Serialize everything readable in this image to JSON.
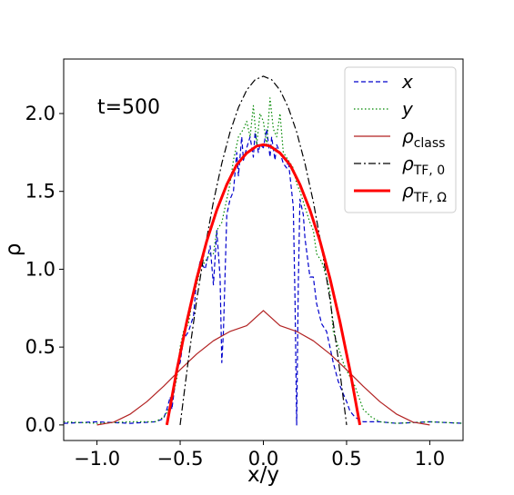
{
  "chart_data": {
    "type": "line",
    "xlabel": "x/y",
    "ylabel": "ρ",
    "xlim": [
      -1.2,
      1.2
    ],
    "ylim": [
      -0.1,
      2.35
    ],
    "xticks": [
      -1.0,
      -0.5,
      0.0,
      0.5,
      1.0
    ],
    "xtick_labels": [
      "−1.0",
      "−0.5",
      "0.0",
      "0.5",
      "1.0"
    ],
    "yticks": [
      0.0,
      0.5,
      1.0,
      1.5,
      2.0
    ],
    "ytick_labels": [
      "0.0",
      "0.5",
      "1.0",
      "1.5",
      "2.0"
    ],
    "grid": false,
    "legend_position": "top-right",
    "annotation": "t=500",
    "series": [
      {
        "name": "x",
        "legend_main": "x",
        "legend_sub": "",
        "color": "#0000cc",
        "style": "dashed",
        "width": 1.2,
        "x": [
          -1.2,
          -1.0,
          -0.8,
          -0.65,
          -0.6,
          -0.58,
          -0.56,
          -0.55,
          -0.52,
          -0.5,
          -0.48,
          -0.45,
          -0.42,
          -0.4,
          -0.38,
          -0.35,
          -0.32,
          -0.3,
          -0.28,
          -0.26,
          -0.25,
          -0.24,
          -0.22,
          -0.2,
          -0.18,
          -0.16,
          -0.15,
          -0.13,
          -0.12,
          -0.1,
          -0.08,
          -0.06,
          -0.05,
          -0.03,
          -0.02,
          0.0,
          0.02,
          0.04,
          0.05,
          0.07,
          0.08,
          0.1,
          0.12,
          0.14,
          0.15,
          0.17,
          0.18,
          0.19,
          0.2,
          0.21,
          0.22,
          0.24,
          0.25,
          0.28,
          0.3,
          0.32,
          0.35,
          0.38,
          0.4,
          0.42,
          0.45,
          0.48,
          0.5,
          0.52,
          0.55,
          0.6,
          0.7,
          0.8,
          1.0,
          1.2
        ],
        "values": [
          0.01,
          0.02,
          0.01,
          0.02,
          0.04,
          0.1,
          0.18,
          0.1,
          0.35,
          0.4,
          0.55,
          0.6,
          0.7,
          0.95,
          1.05,
          1.0,
          1.15,
          0.9,
          1.25,
          0.95,
          0.4,
          0.6,
          1.35,
          1.45,
          1.5,
          1.75,
          1.6,
          1.85,
          1.7,
          1.78,
          1.85,
          1.72,
          1.88,
          1.75,
          1.8,
          1.78,
          1.9,
          1.72,
          1.85,
          1.7,
          1.8,
          1.75,
          1.68,
          1.65,
          1.7,
          1.5,
          1.4,
          0.8,
          0.0,
          0.9,
          1.45,
          1.35,
          1.2,
          0.95,
          0.95,
          0.78,
          0.65,
          0.6,
          0.5,
          0.4,
          0.28,
          0.2,
          0.15,
          0.09,
          0.05,
          0.02,
          0.02,
          0.01,
          0.02,
          0.01
        ]
      },
      {
        "name": "y",
        "legend_main": "y",
        "legend_sub": "",
        "color": "#008800",
        "style": "dotted",
        "width": 1.2,
        "x": [
          -1.2,
          -1.0,
          -0.8,
          -0.65,
          -0.6,
          -0.58,
          -0.55,
          -0.52,
          -0.5,
          -0.48,
          -0.45,
          -0.42,
          -0.4,
          -0.38,
          -0.35,
          -0.32,
          -0.3,
          -0.28,
          -0.25,
          -0.22,
          -0.2,
          -0.18,
          -0.15,
          -0.12,
          -0.1,
          -0.08,
          -0.06,
          -0.04,
          -0.02,
          0.0,
          0.02,
          0.04,
          0.06,
          0.08,
          0.1,
          0.12,
          0.15,
          0.18,
          0.2,
          0.22,
          0.25,
          0.28,
          0.3,
          0.32,
          0.35,
          0.38,
          0.4,
          0.42,
          0.45,
          0.48,
          0.5,
          0.55,
          0.6,
          0.65,
          0.7,
          0.8,
          1.0,
          1.2
        ],
        "values": [
          0.02,
          0.01,
          0.02,
          0.02,
          0.05,
          0.08,
          0.15,
          0.3,
          0.5,
          0.6,
          0.65,
          0.85,
          0.9,
          1.0,
          1.05,
          1.1,
          1.1,
          1.25,
          1.3,
          1.45,
          1.55,
          1.7,
          1.85,
          1.9,
          1.95,
          1.85,
          2.05,
          1.8,
          2.0,
          1.95,
          1.8,
          2.1,
          1.9,
          1.85,
          2.0,
          1.75,
          1.7,
          1.65,
          1.55,
          1.5,
          1.4,
          1.3,
          1.25,
          1.1,
          1.05,
          0.95,
          0.85,
          0.6,
          0.5,
          0.4,
          0.35,
          0.25,
          0.1,
          0.05,
          0.02,
          0.01,
          0.02,
          0.01
        ]
      },
      {
        "name": "ρ_class",
        "legend_main": "ρ",
        "legend_sub": "class",
        "color": "#b22222",
        "style": "solid",
        "width": 1.2,
        "x": [
          -1.0,
          -0.9,
          -0.8,
          -0.7,
          -0.6,
          -0.5,
          -0.4,
          -0.3,
          -0.2,
          -0.1,
          0.0,
          0.1,
          0.2,
          0.3,
          0.4,
          0.5,
          0.6,
          0.7,
          0.8,
          0.9,
          1.0
        ],
        "values": [
          0.0,
          0.0179,
          0.0696,
          0.1496,
          0.2485,
          0.3545,
          0.4559,
          0.5404,
          0.6008,
          0.6373,
          0.7345,
          0.6373,
          0.6008,
          0.5404,
          0.4559,
          0.3545,
          0.2485,
          0.1496,
          0.0696,
          0.0179,
          0.0
        ]
      },
      {
        "name": "ρ_TF,0",
        "legend_main": "ρ",
        "legend_sub": "TF, 0",
        "color": "#000000",
        "style": "dashdot",
        "width": 1.2,
        "x": [
          -0.5,
          -0.45,
          -0.4,
          -0.35,
          -0.3,
          -0.25,
          -0.2,
          -0.15,
          -0.1,
          -0.05,
          0.0,
          0.05,
          0.1,
          0.15,
          0.2,
          0.25,
          0.3,
          0.35,
          0.4,
          0.45,
          0.5
        ],
        "values": [
          0.0,
          0.4256,
          0.8064,
          1.1424,
          1.4336,
          1.68,
          1.8816,
          2.0384,
          2.1504,
          2.2176,
          2.24,
          2.2176,
          2.1504,
          2.0384,
          1.8816,
          1.68,
          1.4336,
          1.1424,
          0.8064,
          0.4256,
          0.0
        ]
      },
      {
        "name": "ρ_TF,Ω",
        "legend_main": "ρ",
        "legend_sub": "TF, Ω",
        "color": "#ff0000",
        "style": "solid",
        "width": 3,
        "x": [
          -0.58,
          -0.52,
          -0.46,
          -0.4,
          -0.34,
          -0.28,
          -0.22,
          -0.16,
          -0.1,
          -0.04,
          0.0,
          0.04,
          0.1,
          0.16,
          0.22,
          0.28,
          0.34,
          0.4,
          0.46,
          0.52,
          0.58
        ],
        "values": [
          0.0,
          0.3525,
          0.6652,
          0.9411,
          1.1818,
          1.3804,
          1.5437,
          1.6717,
          1.7465,
          1.7914,
          1.8,
          1.7914,
          1.7465,
          1.6717,
          1.5437,
          1.3804,
          1.1818,
          0.9411,
          0.6652,
          0.3525,
          0.0
        ]
      }
    ]
  }
}
